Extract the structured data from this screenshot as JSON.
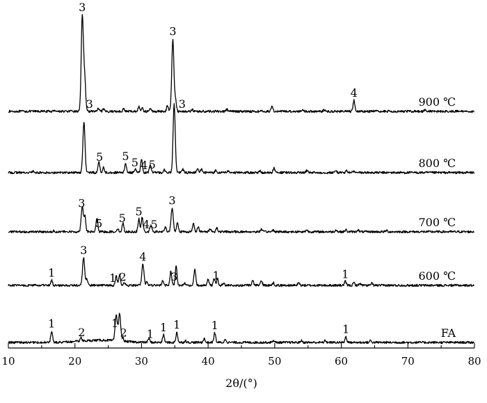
{
  "chart_data": {
    "type": "line",
    "xlabel": "2θ/(°)",
    "xlim": [
      10,
      80
    ],
    "x_ticks": [
      10,
      20,
      30,
      40,
      50,
      60,
      70,
      80
    ],
    "y_axis_shown": false,
    "grid": false,
    "legend": "none",
    "series": [
      {
        "name": "900 ℃",
        "baseline": 0,
        "peaks": [
          {
            "x": 17.0,
            "h": 0.2
          },
          {
            "x": 21.1,
            "h": 14.5
          },
          {
            "x": 21.45,
            "h": 5.0
          },
          {
            "x": 23.5,
            "h": 0.4
          },
          {
            "x": 24.3,
            "h": 0.3
          },
          {
            "x": 27.3,
            "h": 0.4
          },
          {
            "x": 29.6,
            "h": 0.7
          },
          {
            "x": 30.1,
            "h": 0.5
          },
          {
            "x": 31.3,
            "h": 0.4
          },
          {
            "x": 33.9,
            "h": 0.9
          },
          {
            "x": 34.7,
            "h": 11.2
          },
          {
            "x": 35.1,
            "h": 1.8
          },
          {
            "x": 37.6,
            "h": 0.3
          },
          {
            "x": 42.8,
            "h": 0.3
          },
          {
            "x": 49.6,
            "h": 0.8
          },
          {
            "x": 54.2,
            "h": 0.3
          },
          {
            "x": 57.4,
            "h": 0.2
          },
          {
            "x": 61.9,
            "h": 1.7
          },
          {
            "x": 72.6,
            "h": 0.3
          }
        ],
        "annotations": [
          {
            "x": 21.1,
            "text": "3"
          },
          {
            "x": 22.2,
            "text": "3"
          },
          {
            "x": 34.7,
            "text": "3"
          },
          {
            "x": 36.1,
            "text": "3"
          },
          {
            "x": 61.9,
            "text": "4"
          }
        ]
      },
      {
        "name": "800 ℃",
        "baseline": 0,
        "peaks": [
          {
            "x": 13.7,
            "h": 0.2
          },
          {
            "x": 21.35,
            "h": 7.8
          },
          {
            "x": 23.6,
            "h": 1.7
          },
          {
            "x": 24.3,
            "h": 0.8
          },
          {
            "x": 27.6,
            "h": 1.4
          },
          {
            "x": 29.1,
            "h": 0.6
          },
          {
            "x": 30.0,
            "h": 2.2
          },
          {
            "x": 31.3,
            "h": 1.3
          },
          {
            "x": 33.4,
            "h": 0.5
          },
          {
            "x": 34.9,
            "h": 10.5
          },
          {
            "x": 36.2,
            "h": 0.5
          },
          {
            "x": 38.4,
            "h": 0.6
          },
          {
            "x": 39.0,
            "h": 0.5
          },
          {
            "x": 41.2,
            "h": 0.4
          },
          {
            "x": 43.0,
            "h": 0.3
          },
          {
            "x": 47.8,
            "h": 0.3
          },
          {
            "x": 49.9,
            "h": 0.7
          },
          {
            "x": 54.8,
            "h": 0.3
          },
          {
            "x": 59.2,
            "h": 0.3
          },
          {
            "x": 60.8,
            "h": 0.3
          },
          {
            "x": 61.8,
            "h": 0.2
          }
        ],
        "annotations": [
          {
            "x": 23.7,
            "text": "5"
          },
          {
            "x": 27.6,
            "text": "5"
          },
          {
            "x": 29.0,
            "text": "5"
          },
          {
            "x": 30.4,
            "text": "4"
          },
          {
            "x": 31.6,
            "text": "5"
          }
        ]
      },
      {
        "name": "700 ℃",
        "baseline": 0,
        "peaks": [
          {
            "x": 16.8,
            "h": 0.2
          },
          {
            "x": 21.1,
            "h": 4.0
          },
          {
            "x": 21.5,
            "h": 2.4
          },
          {
            "x": 23.3,
            "h": 2.2
          },
          {
            "x": 26.4,
            "h": 0.5
          },
          {
            "x": 27.2,
            "h": 1.3
          },
          {
            "x": 29.6,
            "h": 2.0
          },
          {
            "x": 30.1,
            "h": 2.3
          },
          {
            "x": 31.4,
            "h": 1.0
          },
          {
            "x": 33.6,
            "h": 0.7
          },
          {
            "x": 34.6,
            "h": 3.7
          },
          {
            "x": 35.4,
            "h": 1.5
          },
          {
            "x": 37.8,
            "h": 1.3
          },
          {
            "x": 38.5,
            "h": 0.8
          },
          {
            "x": 40.3,
            "h": 0.5
          },
          {
            "x": 41.3,
            "h": 0.6
          },
          {
            "x": 48.0,
            "h": 0.4
          },
          {
            "x": 49.8,
            "h": 0.3
          },
          {
            "x": 54.8,
            "h": 0.3
          },
          {
            "x": 59.2,
            "h": 0.3
          },
          {
            "x": 60.7,
            "h": 0.3
          },
          {
            "x": 62.5,
            "h": 0.3
          },
          {
            "x": 66.8,
            "h": 0.2
          }
        ],
        "annotations": [
          {
            "x": 21.0,
            "text": "3"
          },
          {
            "x": 23.6,
            "text": "5"
          },
          {
            "x": 27.1,
            "text": "5"
          },
          {
            "x": 29.6,
            "text": "5"
          },
          {
            "x": 30.7,
            "text": "4"
          },
          {
            "x": 31.9,
            "text": "5"
          },
          {
            "x": 34.6,
            "text": "3"
          }
        ]
      },
      {
        "name": "600 ℃",
        "baseline": 0,
        "peaks": [
          {
            "x": 16.5,
            "h": 0.8
          },
          {
            "x": 21.3,
            "h": 4.3
          },
          {
            "x": 21.8,
            "h": 1.0
          },
          {
            "x": 26.2,
            "h": 1.4
          },
          {
            "x": 26.7,
            "h": 1.7
          },
          {
            "x": 27.4,
            "h": 0.5
          },
          {
            "x": 30.2,
            "h": 3.3
          },
          {
            "x": 30.8,
            "h": 0.5
          },
          {
            "x": 33.2,
            "h": 0.7
          },
          {
            "x": 34.4,
            "h": 2.2
          },
          {
            "x": 35.2,
            "h": 3.0
          },
          {
            "x": 36.5,
            "h": 0.3
          },
          {
            "x": 38.0,
            "h": 2.6
          },
          {
            "x": 40.0,
            "h": 0.9
          },
          {
            "x": 40.9,
            "h": 1.1
          },
          {
            "x": 41.4,
            "h": 1.0
          },
          {
            "x": 42.3,
            "h": 0.3
          },
          {
            "x": 46.7,
            "h": 0.7
          },
          {
            "x": 48.0,
            "h": 0.8
          },
          {
            "x": 49.8,
            "h": 0.4
          },
          {
            "x": 53.6,
            "h": 0.4
          },
          {
            "x": 60.6,
            "h": 0.6
          },
          {
            "x": 61.9,
            "h": 0.4
          },
          {
            "x": 62.8,
            "h": 0.3
          },
          {
            "x": 64.6,
            "h": 0.3
          }
        ],
        "annotations": [
          {
            "x": 16.5,
            "text": "1"
          },
          {
            "x": 21.3,
            "text": "3"
          },
          {
            "x": 25.7,
            "text": "1"
          },
          {
            "x": 27.2,
            "text": "2"
          },
          {
            "x": 30.2,
            "text": "4"
          },
          {
            "x": 34.9,
            "text": "3"
          },
          {
            "x": 41.2,
            "text": "1"
          },
          {
            "x": 60.6,
            "text": "1"
          }
        ]
      },
      {
        "name": "FA",
        "baseline": 0,
        "peaks": [
          {
            "x": 16.5,
            "h": 1.8
          },
          {
            "x": 20.9,
            "h": 0.6
          },
          {
            "x": 26.2,
            "h": 4.0
          },
          {
            "x": 26.7,
            "h": 4.3
          },
          {
            "x": 27.2,
            "h": 0.5
          },
          {
            "x": 31.1,
            "h": 0.6
          },
          {
            "x": 33.3,
            "h": 1.2
          },
          {
            "x": 35.3,
            "h": 1.6
          },
          {
            "x": 36.6,
            "h": 0.3
          },
          {
            "x": 39.4,
            "h": 0.6
          },
          {
            "x": 41.0,
            "h": 1.5
          },
          {
            "x": 42.6,
            "h": 0.5
          },
          {
            "x": 49.8,
            "h": 0.3
          },
          {
            "x": 54.0,
            "h": 0.3
          },
          {
            "x": 57.6,
            "h": 0.3
          },
          {
            "x": 60.7,
            "h": 0.9
          },
          {
            "x": 64.4,
            "h": 0.3
          }
        ],
        "annotations": [
          {
            "x": 16.5,
            "text": "1"
          },
          {
            "x": 21.0,
            "text": "2"
          },
          {
            "x": 26.0,
            "text": "1"
          },
          {
            "x": 27.3,
            "text": "2"
          },
          {
            "x": 31.3,
            "text": "1"
          },
          {
            "x": 33.3,
            "text": "1"
          },
          {
            "x": 35.3,
            "text": "1"
          },
          {
            "x": 41.0,
            "text": "1"
          },
          {
            "x": 60.7,
            "text": "1"
          }
        ]
      }
    ]
  }
}
